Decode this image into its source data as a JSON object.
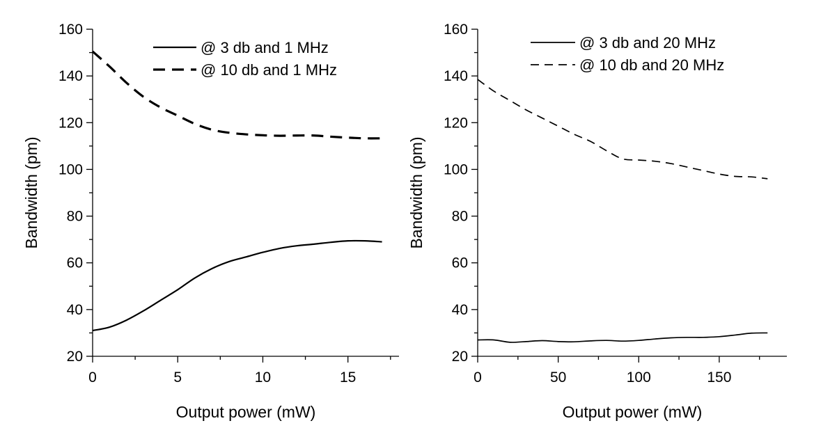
{
  "chart_data": [
    {
      "type": "line",
      "xlabel": "Output power (mW)",
      "ylabel": "Bandwidth (pm)",
      "xlim": [
        0,
        18
      ],
      "ylim": [
        20,
        160
      ],
      "xticks": [
        0,
        5,
        10,
        15
      ],
      "xtick_labels": [
        "0",
        "5",
        "10",
        "15"
      ],
      "yticks": [
        20,
        40,
        60,
        80,
        100,
        120,
        140,
        160
      ],
      "ytick_labels": [
        "20",
        "40",
        "60",
        "80",
        "100",
        "120",
        "140",
        "160"
      ],
      "grid": false,
      "legend_position": "top-right",
      "series": [
        {
          "name": "@ 3 db and 1 MHz",
          "style": "solid",
          "x": [
            0,
            1,
            2,
            3,
            4,
            5,
            6,
            7,
            8,
            9,
            10,
            11,
            12,
            13,
            14,
            15,
            16,
            17
          ],
          "y": [
            31,
            32.5,
            35.5,
            39.5,
            44,
            48.5,
            53.5,
            57.5,
            60.5,
            62.5,
            64.5,
            66.2,
            67.3,
            68,
            68.8,
            69.4,
            69.4,
            69
          ]
        },
        {
          "name": "@ 10 db and 1 MHz",
          "style": "dashed",
          "x": [
            0,
            1,
            2,
            3,
            4,
            5,
            6,
            7,
            8,
            9,
            10,
            11,
            12,
            13,
            14,
            15,
            16,
            17
          ],
          "y": [
            150.5,
            144,
            137,
            131,
            126.5,
            123,
            119.5,
            117,
            115.7,
            115,
            114.6,
            114.4,
            114.5,
            114.5,
            114,
            113.6,
            113.3,
            113.3
          ]
        }
      ]
    },
    {
      "type": "line",
      "xlabel": "Output power (mW)",
      "ylabel": "Bandwidth (pm)",
      "xlim": [
        0,
        192
      ],
      "ylim": [
        20,
        160
      ],
      "xticks": [
        0,
        50,
        100,
        150
      ],
      "xtick_labels": [
        "0",
        "50",
        "100",
        "150"
      ],
      "yticks": [
        20,
        40,
        60,
        80,
        100,
        120,
        140,
        160
      ],
      "ytick_labels": [
        "20",
        "40",
        "60",
        "80",
        "100",
        "120",
        "140",
        "160"
      ],
      "grid": false,
      "legend_position": "top-right",
      "series": [
        {
          "name": "@ 3 db and 20 MHz",
          "style": "solid",
          "x": [
            0,
            10,
            20,
            30,
            40,
            50,
            60,
            70,
            80,
            90,
            100,
            110,
            120,
            130,
            140,
            150,
            160,
            170,
            180
          ],
          "y": [
            27,
            27,
            26,
            26.3,
            26.7,
            26.3,
            26.2,
            26.6,
            26.8,
            26.5,
            26.8,
            27.4,
            27.9,
            28.1,
            28.1,
            28.4,
            29.1,
            29.9,
            30
          ]
        },
        {
          "name": "@ 10 db and 20 MHz",
          "style": "dashed",
          "x": [
            0,
            10,
            20,
            30,
            40,
            50,
            60,
            70,
            80,
            90,
            100,
            110,
            120,
            130,
            140,
            150,
            160,
            170,
            180
          ],
          "y": [
            138.5,
            133.5,
            129.5,
            125.5,
            122,
            118.5,
            115,
            112,
            108,
            104.5,
            104,
            103.5,
            102.5,
            101,
            99.5,
            98,
            97,
            96.8,
            96
          ]
        }
      ]
    }
  ]
}
